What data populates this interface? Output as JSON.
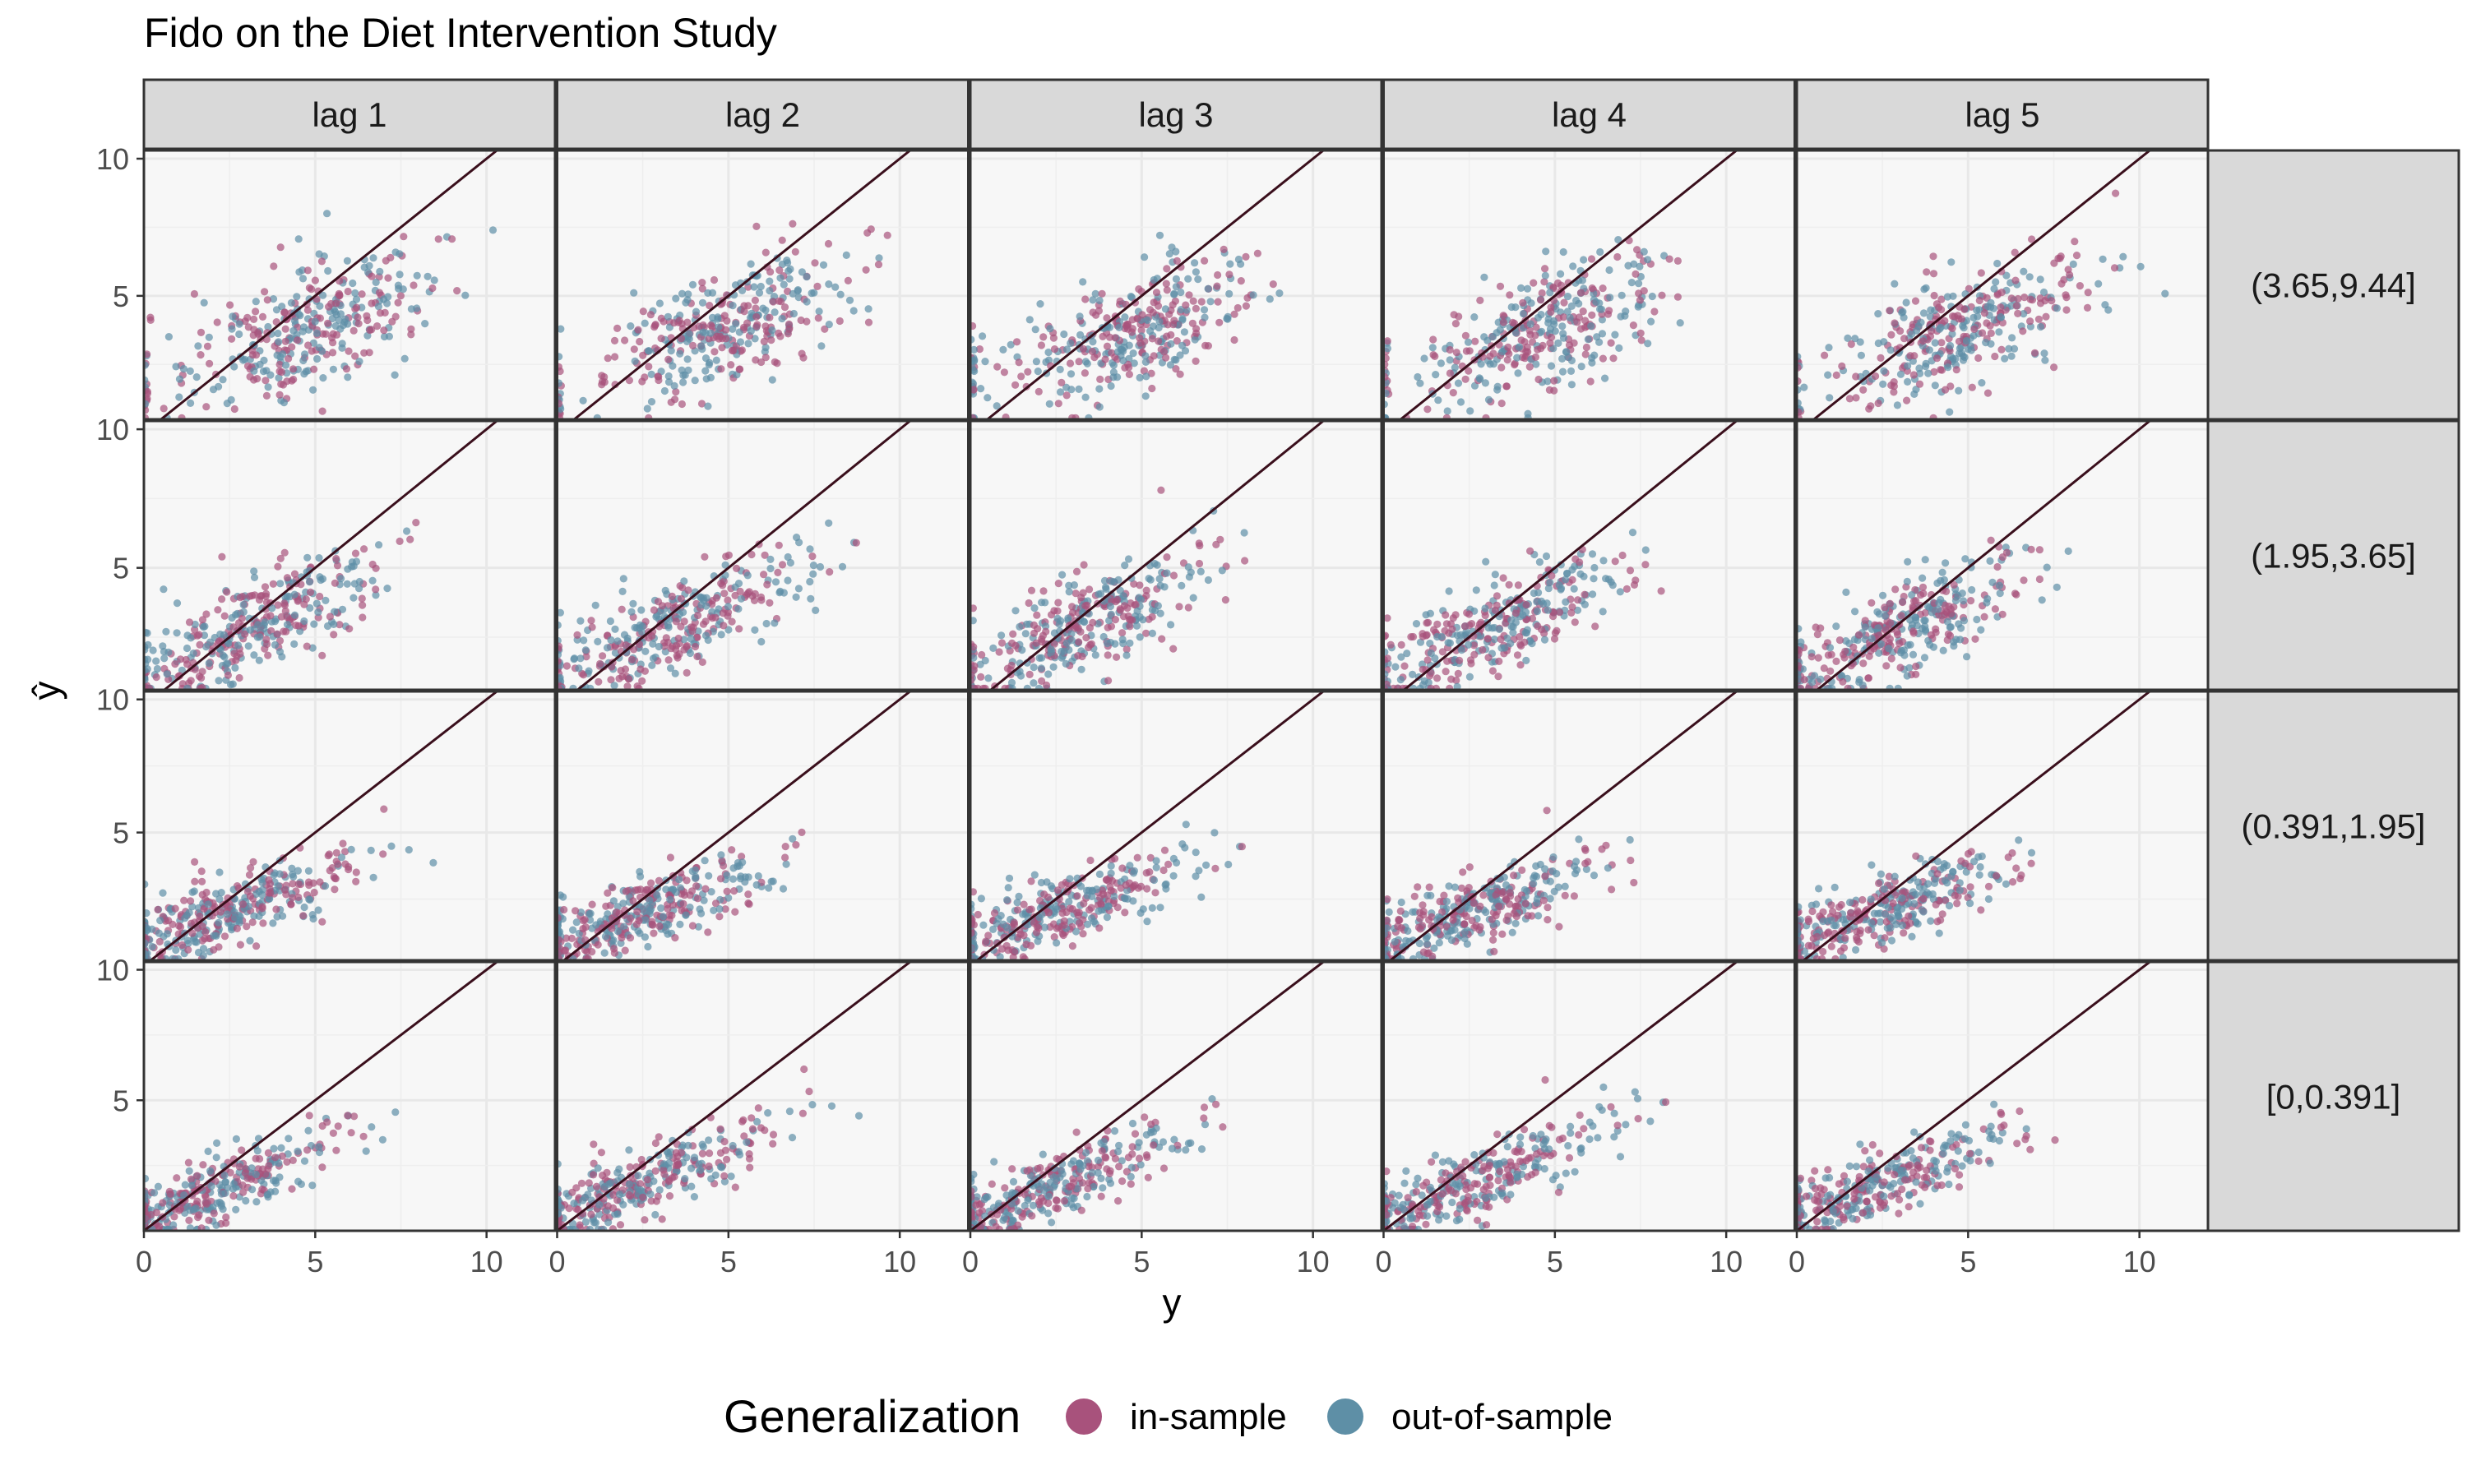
{
  "chart_data": {
    "type": "scatter",
    "title": "Fido on the Diet Intervention Study",
    "xlabel": "y",
    "ylabel": "ŷ",
    "col_facets": [
      "lag 1",
      "lag 2",
      "lag 3",
      "lag 4",
      "lag 5"
    ],
    "row_facets": [
      "(3.65,9.44]",
      "(1.95,3.65]",
      "(0.391,1.95]",
      "[0,0.391]"
    ],
    "xlim": [
      0,
      12
    ],
    "x_ticks": [
      0,
      5,
      10
    ],
    "x_tick_labels": [
      "0",
      "5",
      "10"
    ],
    "y_tick_labels": [
      "5",
      "10"
    ],
    "row_ylims": [
      [
        0.5,
        10.3
      ],
      [
        0.6,
        10.3
      ],
      [
        0.2,
        10.3
      ],
      [
        0,
        10.3
      ]
    ],
    "reference_line": "y = x",
    "grid": true,
    "legend": {
      "title": "Generalization",
      "position": "bottom",
      "entries": [
        {
          "name": "in-sample",
          "color": "#A8527C"
        },
        {
          "name": "out-of-sample",
          "color": "#5E8FA6"
        }
      ]
    },
    "series": [
      {
        "name": "in-sample",
        "color": "#A8527C"
      },
      {
        "name": "out-of-sample",
        "color": "#5E8FA6"
      }
    ],
    "points_per_panel": 360,
    "row_profiles": [
      {
        "x_mean": 4.8,
        "x_sd": 1.8,
        "slope": 0.45,
        "intercept": 1.6,
        "noise": 1.05
      },
      {
        "x_mean": 3.3,
        "x_sd": 1.8,
        "slope": 0.55,
        "intercept": 1.1,
        "noise": 0.85
      },
      {
        "x_mean": 2.5,
        "x_sd": 1.8,
        "slope": 0.45,
        "intercept": 0.9,
        "noise": 0.65
      },
      {
        "x_mean": 2.2,
        "x_sd": 2.0,
        "slope": 0.55,
        "intercept": 0.4,
        "noise": 0.65
      }
    ]
  }
}
